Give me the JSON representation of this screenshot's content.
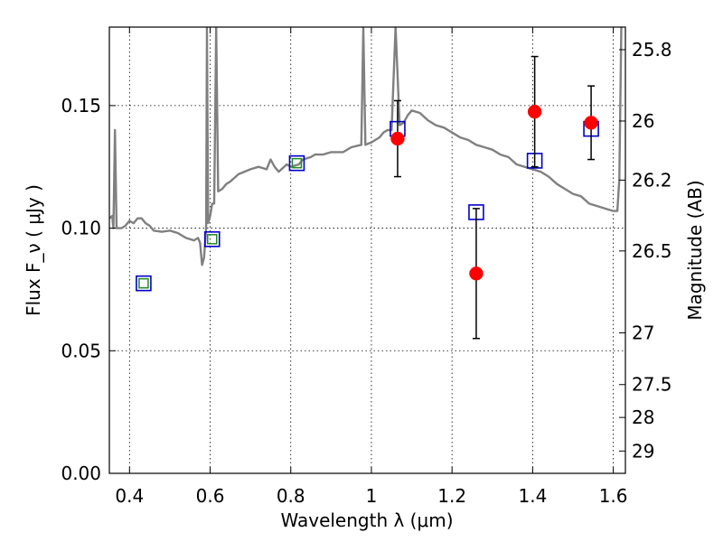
{
  "chart_data": {
    "type": "scatter",
    "xlabel": "Wavelength  λ (μm)",
    "ylabel": "Flux  F_ν  ( μJy )",
    "y2label": "Magnitude (AB)",
    "xlim": [
      0.35,
      1.63
    ],
    "ylim": [
      0.0,
      0.182
    ],
    "grid": true,
    "x_ticks": [
      0.4,
      0.6,
      0.8,
      1.0,
      1.2,
      1.4,
      1.6
    ],
    "x_tick_labels": [
      "0.4",
      "0.6",
      "0.8",
      "1",
      "1.2",
      "1.4",
      "1.6"
    ],
    "y_ticks": [
      0.0,
      0.05,
      0.1,
      0.15
    ],
    "y_tick_labels": [
      "0.00",
      "0.05",
      "0.10",
      "0.15"
    ],
    "y2_ticks": [
      {
        "label": "25.8",
        "flux": 0.1728
      },
      {
        "label": "26",
        "flux": 0.1437
      },
      {
        "label": "26.2",
        "flux": 0.1196
      },
      {
        "label": "26.5",
        "flux": 0.0907
      },
      {
        "label": "27",
        "flux": 0.0573
      },
      {
        "label": "27.5",
        "flux": 0.0362
      },
      {
        "label": "28",
        "flux": 0.0228
      },
      {
        "label": "29",
        "flux": 0.0091
      }
    ],
    "colors": {
      "template": "#808080",
      "observed": "#ff0000",
      "model_box": "#0000cc",
      "model_inner": "#228b22"
    },
    "observed": [
      {
        "x": 1.065,
        "y": 0.1365,
        "err": 0.0155
      },
      {
        "x": 1.26,
        "y": 0.0815,
        "err": 0.0265
      },
      {
        "x": 1.405,
        "y": 0.1475,
        "err": 0.0225
      },
      {
        "x": 1.545,
        "y": 0.143,
        "err": 0.015
      }
    ],
    "model_photometry": [
      {
        "x": 0.435,
        "y": 0.0775,
        "inner": true
      },
      {
        "x": 0.605,
        "y": 0.0955,
        "inner": true
      },
      {
        "x": 0.815,
        "y": 0.1265,
        "inner": true
      },
      {
        "x": 1.065,
        "y": 0.1405,
        "inner": false
      },
      {
        "x": 1.26,
        "y": 0.1065,
        "inner": false
      },
      {
        "x": 1.405,
        "y": 0.1275,
        "inner": false
      },
      {
        "x": 1.545,
        "y": 0.1405,
        "inner": false
      }
    ],
    "template_spectrum": [
      [
        0.35,
        0.104
      ],
      [
        0.357,
        0.105
      ],
      [
        0.36,
        0.1
      ],
      [
        0.364,
        0.14
      ],
      [
        0.368,
        0.1
      ],
      [
        0.38,
        0.1
      ],
      [
        0.39,
        0.101
      ],
      [
        0.4,
        0.103
      ],
      [
        0.41,
        0.102
      ],
      [
        0.42,
        0.104
      ],
      [
        0.43,
        0.104
      ],
      [
        0.44,
        0.102
      ],
      [
        0.45,
        0.101
      ],
      [
        0.46,
        0.099
      ],
      [
        0.48,
        0.0985
      ],
      [
        0.5,
        0.099
      ],
      [
        0.52,
        0.098
      ],
      [
        0.54,
        0.096
      ],
      [
        0.56,
        0.095
      ],
      [
        0.57,
        0.096
      ],
      [
        0.575,
        0.094
      ],
      [
        0.58,
        0.085
      ],
      [
        0.585,
        0.088
      ],
      [
        0.59,
        0.1
      ],
      [
        0.592,
        0.182
      ],
      [
        0.595,
        0.102
      ],
      [
        0.6,
        0.105
      ],
      [
        0.605,
        0.11
      ],
      [
        0.61,
        0.11
      ],
      [
        0.615,
        0.182
      ],
      [
        0.62,
        0.115
      ],
      [
        0.63,
        0.116
      ],
      [
        0.64,
        0.118
      ],
      [
        0.65,
        0.119
      ],
      [
        0.67,
        0.122
      ],
      [
        0.7,
        0.124
      ],
      [
        0.72,
        0.125
      ],
      [
        0.74,
        0.124
      ],
      [
        0.75,
        0.128
      ],
      [
        0.76,
        0.125
      ],
      [
        0.77,
        0.123
      ],
      [
        0.79,
        0.126
      ],
      [
        0.8,
        0.125
      ],
      [
        0.82,
        0.126
      ],
      [
        0.83,
        0.128
      ],
      [
        0.85,
        0.129
      ],
      [
        0.86,
        0.13
      ],
      [
        0.88,
        0.13
      ],
      [
        0.9,
        0.131
      ],
      [
        0.93,
        0.131
      ],
      [
        0.95,
        0.133
      ],
      [
        0.975,
        0.134
      ],
      [
        0.98,
        0.182
      ],
      [
        0.985,
        0.134
      ],
      [
        1.0,
        0.135
      ],
      [
        1.01,
        0.136
      ],
      [
        1.02,
        0.137
      ],
      [
        1.03,
        0.139
      ],
      [
        1.04,
        0.14
      ],
      [
        1.05,
        0.14
      ],
      [
        1.06,
        0.182
      ],
      [
        1.07,
        0.142
      ],
      [
        1.08,
        0.143
      ],
      [
        1.09,
        0.146
      ],
      [
        1.1,
        0.148
      ],
      [
        1.12,
        0.147
      ],
      [
        1.14,
        0.144
      ],
      [
        1.16,
        0.142
      ],
      [
        1.18,
        0.141
      ],
      [
        1.2,
        0.139
      ],
      [
        1.22,
        0.137
      ],
      [
        1.24,
        0.136
      ],
      [
        1.26,
        0.134
      ],
      [
        1.28,
        0.133
      ],
      [
        1.3,
        0.132
      ],
      [
        1.32,
        0.13
      ],
      [
        1.34,
        0.129
      ],
      [
        1.36,
        0.126
      ],
      [
        1.38,
        0.125
      ],
      [
        1.4,
        0.124
      ],
      [
        1.42,
        0.123
      ],
      [
        1.44,
        0.121
      ],
      [
        1.46,
        0.118
      ],
      [
        1.48,
        0.116
      ],
      [
        1.5,
        0.114
      ],
      [
        1.52,
        0.113
      ],
      [
        1.54,
        0.11
      ],
      [
        1.56,
        0.109
      ],
      [
        1.58,
        0.108
      ],
      [
        1.6,
        0.107
      ],
      [
        1.61,
        0.107
      ],
      [
        1.615,
        0.12
      ],
      [
        1.62,
        0.182
      ]
    ]
  }
}
